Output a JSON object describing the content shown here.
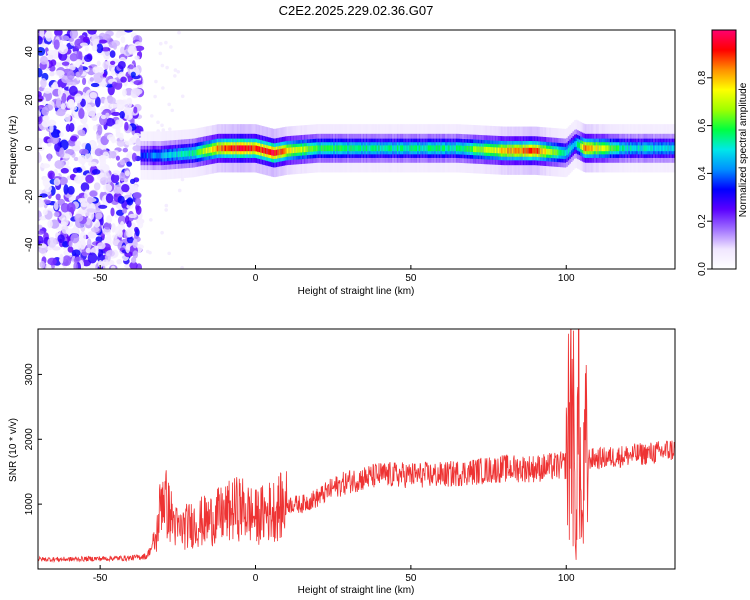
{
  "figure": {
    "title": "C2E2.2025.229.02.36.G07"
  },
  "chart_data": [
    {
      "type": "heatmap",
      "xlabel": "Height of straight line (km)",
      "ylabel": "Frequency (Hz)",
      "xlim": [
        -70,
        135
      ],
      "ylim": [
        -50,
        49
      ],
      "xticks": [
        -50,
        0,
        50,
        100
      ],
      "yticks": [
        -40,
        -20,
        0,
        20,
        40
      ],
      "colorbar": {
        "label": "Normalized spectral amplitude",
        "range": [
          0,
          1
        ],
        "ticks": [
          0.0,
          0.2,
          0.4,
          0.6,
          0.8
        ],
        "colors": [
          "#ffffff",
          "#f0e6ff",
          "#a070ff",
          "#5a00ff",
          "#0000ff",
          "#0090ff",
          "#00e8e8",
          "#00ff40",
          "#a0ff00",
          "#ffff00",
          "#ff9000",
          "#ff0000",
          "#ff0070"
        ]
      },
      "description_points": {
        "noise_region_x": [
          -70,
          -37
        ],
        "signal_track": [
          {
            "x": -37,
            "y": -3,
            "a": 0.35
          },
          {
            "x": -30,
            "y": -3,
            "a": 0.45
          },
          {
            "x": -20,
            "y": -2,
            "a": 0.55
          },
          {
            "x": -12,
            "y": 0,
            "a": 0.85
          },
          {
            "x": -5,
            "y": 0,
            "a": 0.95
          },
          {
            "x": 0,
            "y": 0,
            "a": 0.9
          },
          {
            "x": 6,
            "y": -2,
            "a": 0.95
          },
          {
            "x": 10,
            "y": -1,
            "a": 0.8
          },
          {
            "x": 20,
            "y": 0,
            "a": 0.6
          },
          {
            "x": 35,
            "y": 0,
            "a": 0.55
          },
          {
            "x": 50,
            "y": 0,
            "a": 0.55
          },
          {
            "x": 65,
            "y": 0,
            "a": 0.55
          },
          {
            "x": 80,
            "y": -1,
            "a": 0.8
          },
          {
            "x": 90,
            "y": -1,
            "a": 0.9
          },
          {
            "x": 100,
            "y": -2,
            "a": 0.5
          },
          {
            "x": 103,
            "y": 2,
            "a": 0.45
          },
          {
            "x": 106,
            "y": 0,
            "a": 0.85
          },
          {
            "x": 120,
            "y": 0,
            "a": 0.5
          },
          {
            "x": 135,
            "y": 0,
            "a": 0.5
          }
        ]
      }
    },
    {
      "type": "line",
      "xlabel": "Height of straight line (km)",
      "ylabel": "SNR (10 * v/v)",
      "xlim": [
        -70,
        135
      ],
      "ylim": [
        0,
        3700
      ],
      "xticks": [
        -50,
        0,
        50,
        100
      ],
      "yticks": [
        1000,
        2000,
        3000
      ],
      "color": "#ee3333",
      "series": [
        {
          "x": [
            -70,
            -60,
            -50,
            -40,
            -35,
            -32,
            -30,
            -28,
            -25,
            -20,
            -15,
            -10,
            -5,
            0,
            5,
            10,
            15,
            20,
            25,
            30,
            35,
            40,
            50,
            60,
            70,
            80,
            90,
            100,
            102,
            103,
            104,
            105,
            106,
            110,
            120,
            130,
            135
          ],
          "y": [
            150,
            150,
            160,
            170,
            200,
            450,
            1200,
            900,
            600,
            700,
            750,
            850,
            950,
            800,
            900,
            1000,
            1000,
            1100,
            1250,
            1350,
            1400,
            1450,
            1450,
            1450,
            1500,
            1550,
            1550,
            1600,
            2800,
            400,
            2800,
            500,
            1700,
            1700,
            1750,
            1800,
            1850
          ]
        }
      ]
    }
  ]
}
